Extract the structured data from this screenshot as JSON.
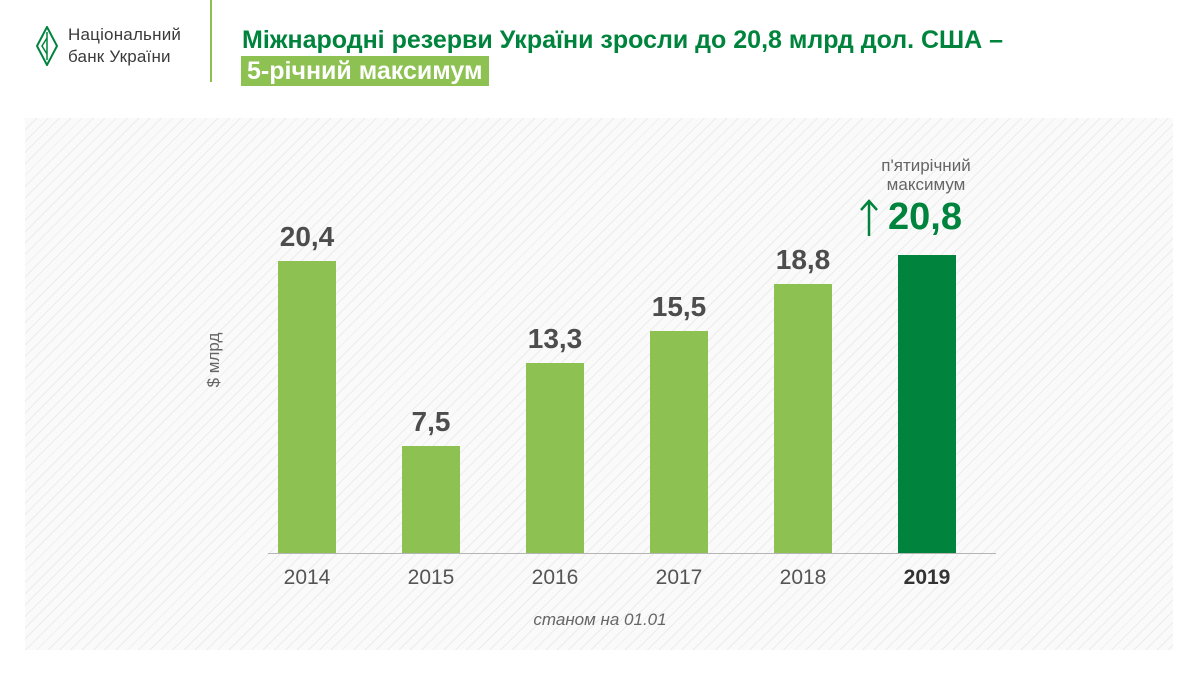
{
  "header": {
    "logo_line1": "Національний",
    "logo_line2": "банк України",
    "title_line1": "Міжнародні резерви України зросли до 20,8 млрд дол. США –",
    "title_line2": "5-річний максимум"
  },
  "colors": {
    "bar_regular": "#8dc152",
    "bar_highlight": "#00843d",
    "title": "#00843d"
  },
  "chart_data": {
    "type": "bar",
    "title": "Міжнародні резерви України зросли до 20,8 млрд дол. США – 5-річний максимум",
    "ylabel": "$ млрд",
    "xlabel": "станом на 01.01",
    "categories": [
      "2014",
      "2015",
      "2016",
      "2017",
      "2018",
      "2019"
    ],
    "values": [
      20.4,
      7.5,
      13.3,
      15.5,
      18.8,
      20.8
    ],
    "value_labels": [
      "20,4",
      "7,5",
      "13,3",
      "15,5",
      "18,8",
      ""
    ],
    "highlight_index": 5,
    "ylim": [
      0,
      22
    ],
    "grid": false,
    "annotation": {
      "label": "п'ятирічний максимум",
      "value_text": "20,8",
      "icon": "arrow-up-icon"
    }
  }
}
